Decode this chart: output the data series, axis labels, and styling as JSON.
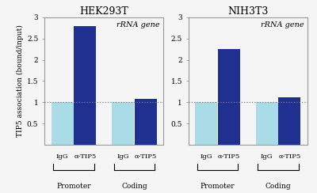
{
  "left_title": "HEK293T",
  "right_title": "NIH3T3",
  "annotation": "rRNA gene",
  "ylabel": "TIP5 association (bound/input)",
  "left_bars": {
    "promoter": [
      1.0,
      2.8
    ],
    "coding": [
      1.0,
      1.08
    ]
  },
  "right_bars": {
    "promoter": [
      1.0,
      2.25
    ],
    "coding": [
      1.0,
      1.12
    ]
  },
  "bar_colors": [
    "#aadce8",
    "#1f3090"
  ],
  "bar_width": 0.32,
  "ylim": [
    0,
    3.0
  ],
  "yticks": [
    0.5,
    1.0,
    1.5,
    2.0,
    2.5,
    3.0
  ],
  "ytick_labels": [
    "0.5",
    "1",
    "1.5",
    "2",
    "2.5",
    "3"
  ],
  "hline_y": 1.0,
  "group_labels": [
    "IgG",
    "α-TIP5"
  ],
  "section_labels": [
    "Promoter",
    "Coding"
  ],
  "background_color": "#f5f5f5",
  "border_color": "#999999",
  "title_fontsize": 9,
  "label_fontsize": 6,
  "ytick_fontsize": 6.5,
  "ylabel_fontsize": 6.5,
  "annotation_fontsize": 7
}
